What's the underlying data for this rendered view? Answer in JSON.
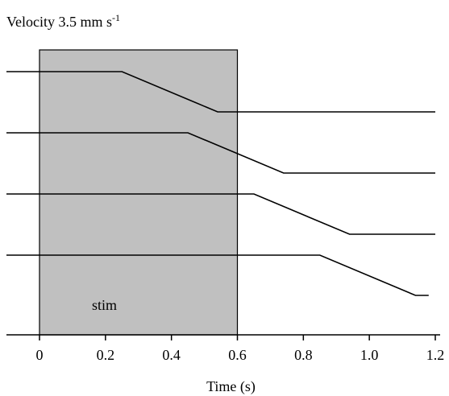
{
  "chart_data": {
    "type": "line",
    "title": "Velocity 3.5 mm s",
    "title_superscript": "-1",
    "xlabel": "Time (s)",
    "ylabel": "",
    "xlim": [
      -0.1,
      1.2
    ],
    "xticks": [
      0,
      0.2,
      0.4,
      0.6,
      0.8,
      1.0,
      1.2
    ],
    "xtick_labels": [
      "0",
      "0.2",
      "0.4",
      "0.6",
      "0.8",
      "1.0",
      "1.2"
    ],
    "grid": false,
    "shaded_region": {
      "x": [
        0,
        0.6
      ],
      "label": "stim",
      "color": "#c0c0c0"
    },
    "series": [
      {
        "x": [
          -0.1,
          0.25,
          0.54,
          1.2
        ],
        "y": [
          0,
          0,
          -1,
          -1
        ]
      },
      {
        "x": [
          -0.1,
          0.45,
          0.74,
          1.2
        ],
        "y": [
          0,
          0,
          -1,
          -1
        ]
      },
      {
        "x": [
          -0.1,
          0.65,
          0.94,
          1.2
        ],
        "y": [
          0,
          0,
          -1,
          -1
        ]
      },
      {
        "x": [
          -0.1,
          0.85,
          1.14,
          1.18
        ],
        "y": [
          0,
          0,
          -1,
          -1
        ]
      }
    ]
  }
}
